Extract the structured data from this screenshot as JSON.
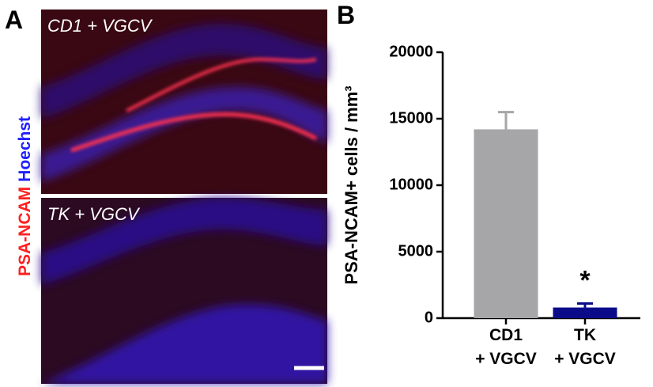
{
  "panel_labels": [
    "A",
    "B"
  ],
  "images": [
    {
      "label": "CD1 + VGCV"
    },
    {
      "label": "TK + VGCV"
    }
  ],
  "stain_labels": [
    {
      "text": "PSA-NCAM",
      "color": "#ff2020"
    },
    {
      "text": "Hoechst",
      "color": "#2020ff"
    }
  ],
  "chart_data": {
    "type": "bar",
    "ylabel": "PSA-NCAM+ cells / mm³",
    "categories": [
      [
        "CD1",
        "+ VGCV"
      ],
      [
        "TK",
        "+ VGCV"
      ]
    ],
    "values": [
      14200,
      800
    ],
    "errors": [
      1300,
      300
    ],
    "colors": [
      "#a6a6a8",
      "#0b0b8a"
    ],
    "ylim": [
      0,
      20000
    ],
    "yticks": [
      0,
      5000,
      10000,
      15000,
      20000
    ],
    "annotations": [
      {
        "text": "*",
        "category": 1
      }
    ]
  }
}
